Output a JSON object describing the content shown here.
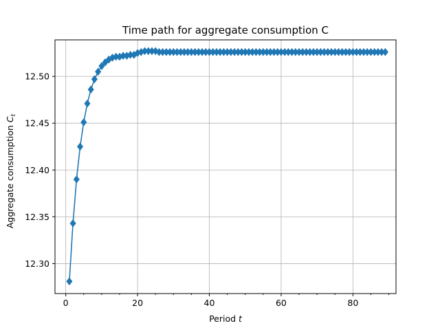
{
  "chart_data": {
    "type": "line",
    "title": "Time path for aggregate consumption C",
    "xlabel_text": "Period ",
    "xlabel_var": "t",
    "ylabel_text": "Aggregate consumption ",
    "ylabel_var": "C",
    "ylabel_sub": "t",
    "xlim": [
      -3,
      92
    ],
    "ylim": [
      12.268,
      12.539
    ],
    "xticks": [
      0,
      20,
      40,
      60,
      80
    ],
    "xtick_labels": [
      "0",
      "20",
      "40",
      "60",
      "80"
    ],
    "yticks": [
      12.3,
      12.35,
      12.4,
      12.45,
      12.5
    ],
    "ytick_labels": [
      "12.30",
      "12.35",
      "12.40",
      "12.45",
      "12.50"
    ],
    "grid": true,
    "marker": "diamond",
    "color": "#1f77b4",
    "x": [
      1,
      2,
      3,
      4,
      5,
      6,
      7,
      8,
      9,
      10,
      11,
      12,
      13,
      14,
      15,
      16,
      17,
      18,
      19,
      20,
      21,
      22,
      23,
      24,
      25,
      26,
      27,
      28,
      29,
      30,
      31,
      32,
      33,
      34,
      35,
      36,
      37,
      38,
      39,
      40,
      41,
      42,
      43,
      44,
      45,
      46,
      47,
      48,
      49,
      50,
      51,
      52,
      53,
      54,
      55,
      56,
      57,
      58,
      59,
      60,
      61,
      62,
      63,
      64,
      65,
      66,
      67,
      68,
      69,
      70,
      71,
      72,
      73,
      74,
      75,
      76,
      77,
      78,
      79,
      80,
      81,
      82,
      83,
      84,
      85,
      86,
      87,
      88,
      89
    ],
    "y": [
      12.281,
      12.343,
      12.39,
      12.425,
      12.451,
      12.471,
      12.486,
      12.497,
      12.505,
      12.511,
      12.515,
      12.518,
      12.52,
      12.521,
      12.521,
      12.522,
      12.522,
      12.523,
      12.523,
      12.525,
      12.526,
      12.527,
      12.527,
      12.527,
      12.527,
      12.526,
      12.526,
      12.526,
      12.526,
      12.526,
      12.526,
      12.526,
      12.526,
      12.526,
      12.526,
      12.526,
      12.526,
      12.526,
      12.526,
      12.526,
      12.526,
      12.526,
      12.526,
      12.526,
      12.526,
      12.526,
      12.526,
      12.526,
      12.526,
      12.526,
      12.526,
      12.526,
      12.526,
      12.526,
      12.526,
      12.526,
      12.526,
      12.526,
      12.526,
      12.526,
      12.526,
      12.526,
      12.526,
      12.526,
      12.526,
      12.526,
      12.526,
      12.526,
      12.526,
      12.526,
      12.526,
      12.526,
      12.526,
      12.526,
      12.526,
      12.526,
      12.526,
      12.526,
      12.526,
      12.526,
      12.526,
      12.526,
      12.526,
      12.526,
      12.526,
      12.526,
      12.526,
      12.526,
      12.526
    ]
  }
}
